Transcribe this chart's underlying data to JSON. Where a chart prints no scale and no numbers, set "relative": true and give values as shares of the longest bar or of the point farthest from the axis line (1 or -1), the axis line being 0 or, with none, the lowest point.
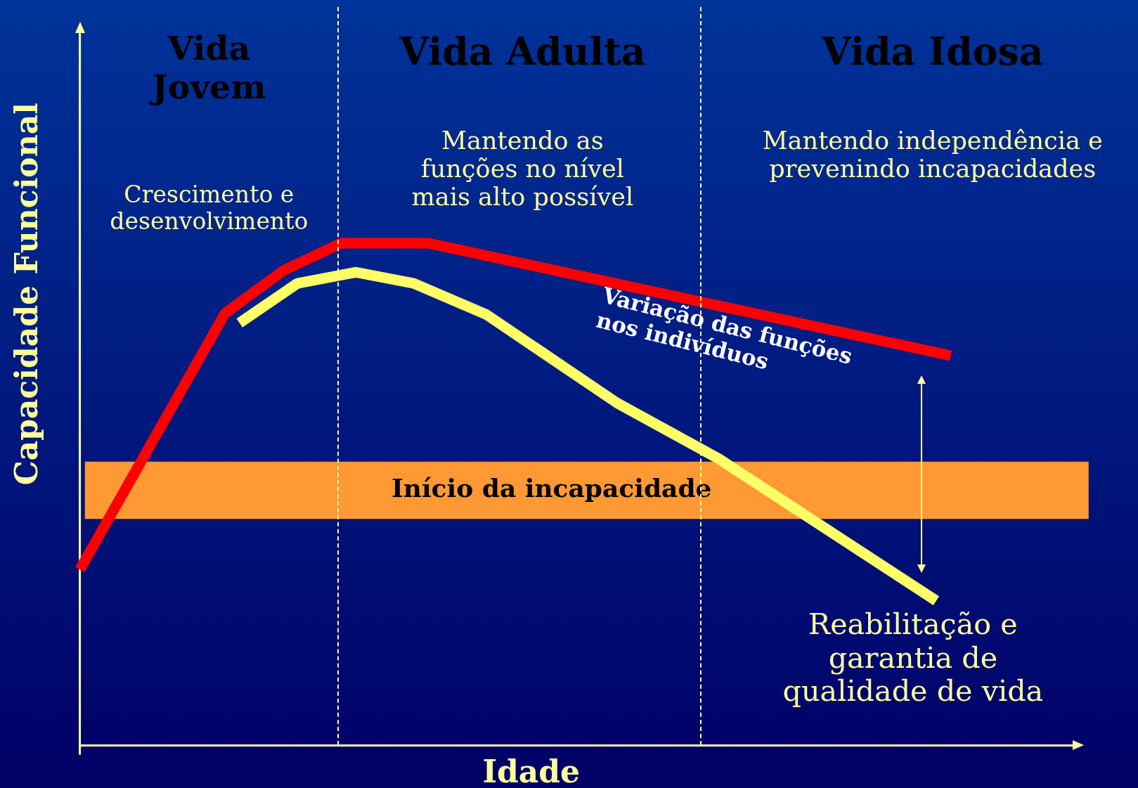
{
  "chart_data": {
    "type": "line",
    "relative": true,
    "xlabel": "Idade",
    "ylabel": "Capacidade Funcional",
    "categories": [
      null,
      null,
      null,
      null,
      null,
      null,
      null,
      null,
      null,
      null,
      null,
      null,
      null,
      null,
      null,
      null,
      null,
      null,
      null,
      null,
      null,
      null,
      null,
      null,
      null,
      null,
      null,
      null,
      null,
      null,
      null,
      null,
      null,
      null,
      null,
      null,
      null,
      null,
      null,
      null,
      null,
      null,
      null,
      null,
      null,
      null,
      null,
      null,
      null,
      null,
      null,
      null,
      null,
      null,
      null,
      null,
      null,
      null,
      null,
      null,
      null,
      null,
      null,
      null,
      null,
      null,
      null,
      null,
      null,
      null
    ],
    "series": [
      {
        "color": "#ff0000",
        "values": [
          0.35,
          null,
          null,
          null,
          null,
          null,
          null,
          null,
          null,
          null,
          0.86,
          null,
          null,
          null,
          0.945,
          null,
          null,
          null,
          1,
          null,
          null,
          null,
          null,
          null,
          1,
          null,
          null,
          null,
          null,
          null,
          null,
          null,
          null,
          null,
          null,
          null,
          null,
          null,
          null,
          null,
          null,
          null,
          null,
          null,
          null,
          null,
          null,
          null,
          null,
          null,
          null,
          null,
          null,
          null,
          null,
          null,
          null,
          null,
          null,
          null,
          0.776,
          null,
          null,
          null,
          null,
          null,
          null,
          null,
          null,
          null
        ]
      },
      {
        "color": "#ffff66",
        "values": [
          null,
          null,
          null,
          null,
          null,
          null,
          null,
          null,
          null,
          null,
          null,
          0.841,
          null,
          null,
          null,
          0.92,
          null,
          null,
          null,
          0.942,
          null,
          null,
          null,
          0.92,
          null,
          null,
          null,
          null,
          0.858,
          null,
          null,
          null,
          null,
          null,
          null,
          null,
          null,
          0.682,
          null,
          null,
          null,
          null,
          null,
          null,
          0.571,
          null,
          null,
          null,
          null,
          null,
          null,
          null,
          null,
          null,
          null,
          null,
          null,
          null,
          null,
          0.288,
          null,
          null,
          null,
          null,
          null,
          null,
          null,
          null,
          null,
          null
        ]
      }
    ],
    "bands": [
      {
        "axis": "y",
        "from": 0.451,
        "to": 0.565,
        "label": "Início da incapacidade",
        "color": "#ff9933"
      }
    ],
    "annotations": [
      "Vida Jovem",
      "Vida Adulta",
      "Vida Idosa",
      "Crescimento e desenvolvimento",
      "Mantendo as funções no nível mais alto possível",
      "Mantendo independência e prevenindo incapacidades",
      "Variação das funções nos indivíduos",
      "Reabilitação e garantia de qualidade de vida"
    ],
    "legend": false,
    "marker": "none",
    "line_style": "solid"
  }
}
